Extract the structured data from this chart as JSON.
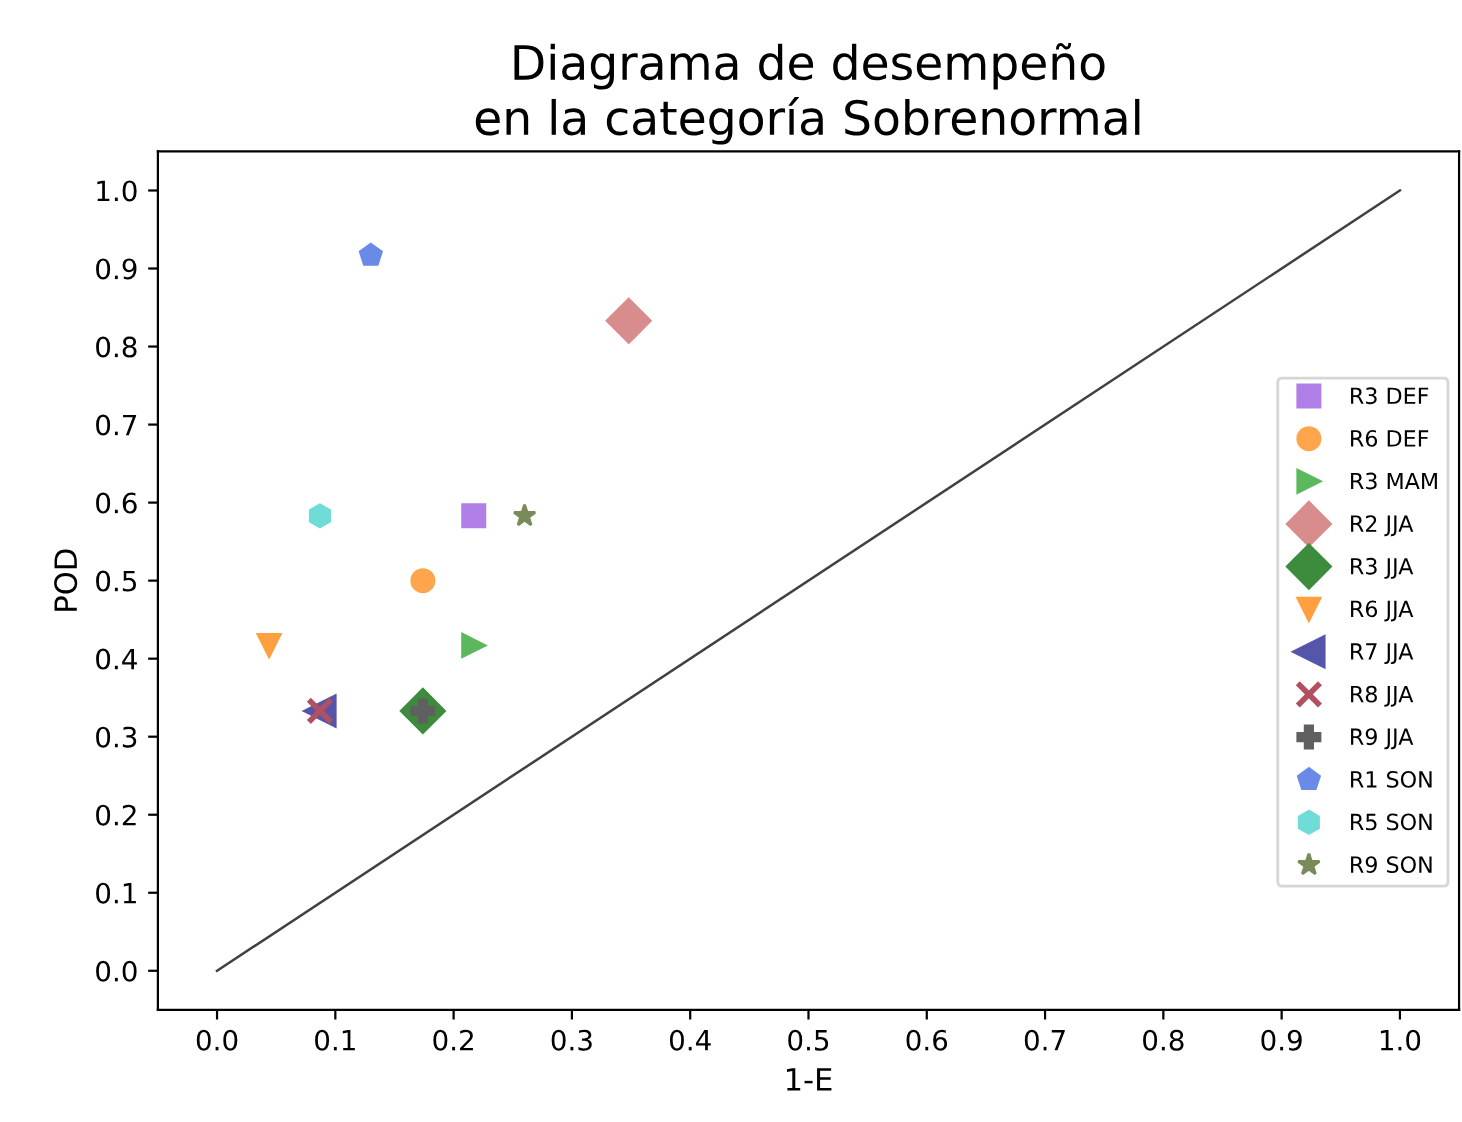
{
  "chart_data": {
    "type": "scatter",
    "title": "Diagrama de desempeño\nen la categoría Sobrenormal",
    "xlabel": "1-E",
    "ylabel": "POD",
    "xlim": [
      -0.05,
      1.05
    ],
    "ylim": [
      -0.05,
      1.05
    ],
    "xticks": [
      {
        "value": 0,
        "label": "0.0"
      },
      0.1,
      0.2,
      0.3,
      0.4,
      0.5,
      0.6,
      0.7,
      0.8,
      0.9,
      {
        "value": 1,
        "label": "1.0"
      }
    ],
    "yticks": [
      {
        "value": 0,
        "label": "0.0"
      },
      0.1,
      0.2,
      0.3,
      0.4,
      0.5,
      0.6,
      0.7,
      0.8,
      0.9,
      {
        "value": 1,
        "label": "1.0"
      }
    ],
    "grid": false,
    "legend": "right",
    "series": [
      {
        "name": "R3 DEF",
        "color": "#b07fe8",
        "marker": "square",
        "x": [
          0.217
        ],
        "values": [
          0.583
        ]
      },
      {
        "name": "R6 DEF",
        "color": "#ffa64d",
        "marker": "circle",
        "x": [
          0.174
        ],
        "values": [
          0.5
        ]
      },
      {
        "name": "R3 MAM",
        "color": "#5cb85c",
        "marker": "triangle-right",
        "x": [
          0.217
        ],
        "values": [
          0.417
        ]
      },
      {
        "name": "R2 JJA",
        "color": "#d98c8c",
        "marker": "diamond",
        "x": [
          0.348
        ],
        "values": [
          0.833
        ]
      },
      {
        "name": "R3 JJA",
        "color": "#3d8c3d",
        "marker": "diamond",
        "x": [
          0.174
        ],
        "values": [
          0.333
        ]
      },
      {
        "name": "R6 JJA",
        "color": "#ffa040",
        "marker": "triangle-down",
        "x": [
          0.044
        ],
        "values": [
          0.417
        ]
      },
      {
        "name": "R7 JJA",
        "color": "#5555aa",
        "marker": "triangle-left",
        "x": [
          0.087
        ],
        "values": [
          0.333
        ]
      },
      {
        "name": "R8 JJA",
        "color": "#b05060",
        "marker": "cross",
        "x": [
          0.087
        ],
        "values": [
          0.333
        ]
      },
      {
        "name": "R9 JJA",
        "color": "#606060",
        "marker": "plus",
        "x": [
          0.174
        ],
        "values": [
          0.333
        ]
      },
      {
        "name": "R1 SON",
        "color": "#6a8ae8",
        "x": [
          0.13
        ],
        "values": [
          0.917
        ]
      },
      {
        "name": "R5 SON",
        "color": "#70dcd8",
        "x": [
          0.087
        ],
        "values": [
          0.583
        ]
      },
      {
        "name": "R9 SON",
        "color": "#7a8a5a",
        "marker": "star",
        "x": [
          0.26
        ],
        "values": [
          0.583
        ]
      },
      {
        "type": "line",
        "color": "#404040",
        "marker": "none",
        "line_style": "solid",
        "x": [
          0,
          1
        ],
        "values": [
          0,
          1
        ]
      }
    ]
  }
}
